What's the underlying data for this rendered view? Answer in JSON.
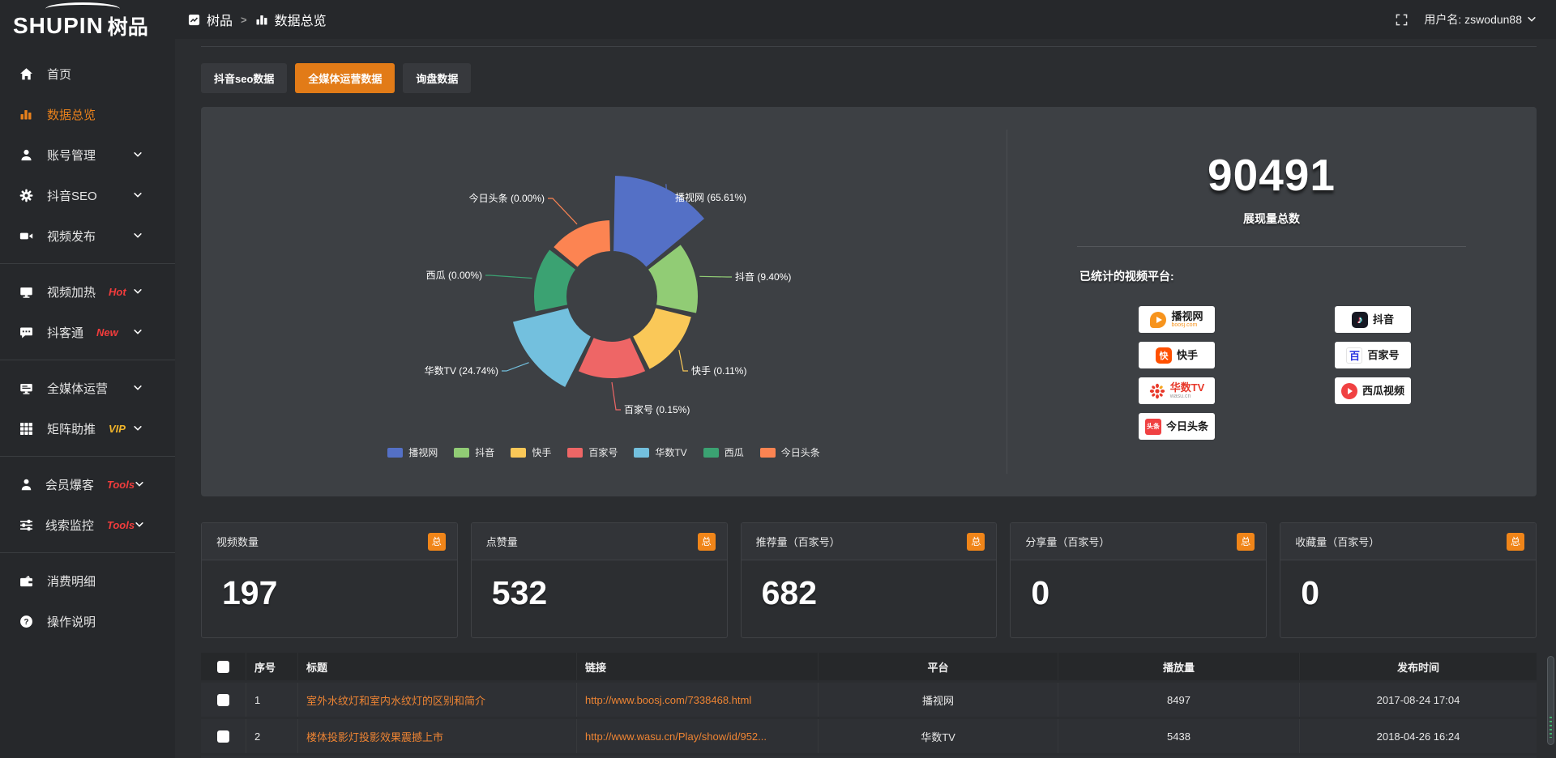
{
  "colors": {
    "accent": "#e8811c",
    "tab_active": "#e27b17",
    "link": "#ee8433",
    "panel": "#3d4044",
    "hot_badge": "#f23c3c",
    "vip_badge": "#f0b42a"
  },
  "sidebar": {
    "logo": {
      "en": "SHUPIN",
      "cn": "树品"
    },
    "groups": [
      {
        "items": [
          {
            "key": "home",
            "label": "首页",
            "icon": "home",
            "active": false,
            "chevron": false
          },
          {
            "key": "data-overview",
            "label": "数据总览",
            "icon": "bar-chart",
            "active": true,
            "chevron": false
          },
          {
            "key": "account-manage",
            "label": "账号管理",
            "icon": "user",
            "active": false,
            "chevron": true
          },
          {
            "key": "douyin-seo",
            "label": "抖音SEO",
            "icon": "gear",
            "active": false,
            "chevron": true
          },
          {
            "key": "video-publish",
            "label": "视频发布",
            "icon": "video-camera",
            "active": false,
            "chevron": true
          }
        ]
      },
      {
        "items": [
          {
            "key": "video-heat",
            "label": "视频加热",
            "icon": "monitor",
            "active": false,
            "chevron": true,
            "badge": {
              "text": "Hot",
              "color": "#f23c3c"
            }
          },
          {
            "key": "douketong",
            "label": "抖客通",
            "icon": "chat",
            "active": false,
            "chevron": true,
            "badge": {
              "text": "New",
              "color": "#f23c3c"
            }
          }
        ]
      },
      {
        "items": [
          {
            "key": "omni-media",
            "label": "全媒体运营",
            "icon": "display",
            "active": false,
            "chevron": true
          },
          {
            "key": "matrix-boost",
            "label": "矩阵助推",
            "icon": "grid",
            "active": false,
            "chevron": true,
            "badge": {
              "text": "VIP",
              "color": "#f0b42a"
            }
          }
        ]
      },
      {
        "items": [
          {
            "key": "member-burst",
            "label": "会员爆客",
            "icon": "person",
            "active": false,
            "chevron": true,
            "badge": {
              "text": "Tools",
              "color": "#f23c3c"
            }
          },
          {
            "key": "lead-monitor",
            "label": "线索监控",
            "icon": "sliders",
            "active": false,
            "chevron": true,
            "badge": {
              "text": "Tools",
              "color": "#f23c3c"
            }
          }
        ]
      },
      {
        "items": [
          {
            "key": "consume-detail",
            "label": "消费明细",
            "icon": "wallet",
            "active": false,
            "chevron": false
          },
          {
            "key": "operation-guide",
            "label": "操作说明",
            "icon": "question",
            "active": false,
            "chevron": false
          }
        ]
      }
    ]
  },
  "topbar": {
    "breadcrumb": [
      {
        "label": "树品",
        "icon": "app"
      },
      {
        "label": "数据总览",
        "icon": "bar-chart"
      }
    ],
    "separator": ">",
    "username": "用户名: zswodun88"
  },
  "tabs": [
    {
      "key": "douyin-seo-data",
      "label": "抖音seo数据",
      "active": false
    },
    {
      "key": "omni-media-data",
      "label": "全媒体运营数据",
      "active": true
    },
    {
      "key": "inquiry-data",
      "label": "询盘数据",
      "active": false
    }
  ],
  "chart_data": {
    "type": "pie",
    "variant": "nightingale-rose",
    "unit": "%",
    "label_format": "{name} ({value}%)",
    "legend_position": "bottom",
    "series": [
      {
        "name": "播视网",
        "value": 65.61,
        "color": "#5470c6"
      },
      {
        "name": "抖音",
        "value": 9.4,
        "color": "#91cc75"
      },
      {
        "name": "快手",
        "value": 0.11,
        "color": "#fac858"
      },
      {
        "name": "百家号",
        "value": 0.15,
        "color": "#ee6666"
      },
      {
        "name": "华数TV",
        "value": 24.74,
        "color": "#73c0de"
      },
      {
        "name": "西瓜",
        "value": 0.0,
        "color": "#3ba272"
      },
      {
        "name": "今日头条",
        "value": 0.0,
        "color": "#fc8452"
      }
    ]
  },
  "summary": {
    "total_value": "90491",
    "total_label": "展现量总数",
    "platforms_label": "已统计的视频平台:",
    "platforms_left": [
      {
        "name": "播视网",
        "sub": "boosj.com",
        "sub_color": "#f7941d",
        "icon": "boosj-icon"
      },
      {
        "name": "快手",
        "icon": "kuaishou-icon"
      },
      {
        "name": "华数TV",
        "name_color": "#e8392b",
        "sub": "wasu.cn",
        "sub_color": "#999999",
        "icon": "wasu-icon"
      },
      {
        "name": "今日头条",
        "icon": "toutiao-icon"
      }
    ],
    "platforms_right": [
      {
        "name": "抖音",
        "icon": "douyin-icon"
      },
      {
        "name": "百家号",
        "icon": "baijiahao-icon"
      },
      {
        "name": "西瓜视频",
        "icon": "xigua-icon"
      }
    ]
  },
  "stat_cards": [
    {
      "label": "视频数量",
      "badge": "总",
      "value": "197"
    },
    {
      "label": "点赞量",
      "badge": "总",
      "value": "532"
    },
    {
      "label": "推荐量（百家号）",
      "badge": "总",
      "value": "682"
    },
    {
      "label": "分享量（百家号）",
      "badge": "总",
      "value": "0"
    },
    {
      "label": "收藏量（百家号）",
      "badge": "总",
      "value": "0"
    }
  ],
  "table": {
    "columns": [
      "序号",
      "标题",
      "链接",
      "平台",
      "播放量",
      "发布时间"
    ],
    "rows": [
      {
        "index": "1",
        "title": "室外水纹灯和室内水纹灯的区别和简介",
        "link": "http://www.boosj.com/7338468.html",
        "platform": "播视网",
        "views": "8497",
        "time": "2017-08-24 17:04"
      },
      {
        "index": "2",
        "title": "楼体投影灯投影效果震撼上市",
        "link": "http://www.wasu.cn/Play/show/id/952...",
        "platform": "华数TV",
        "views": "5438",
        "time": "2018-04-26 16:24"
      }
    ]
  }
}
